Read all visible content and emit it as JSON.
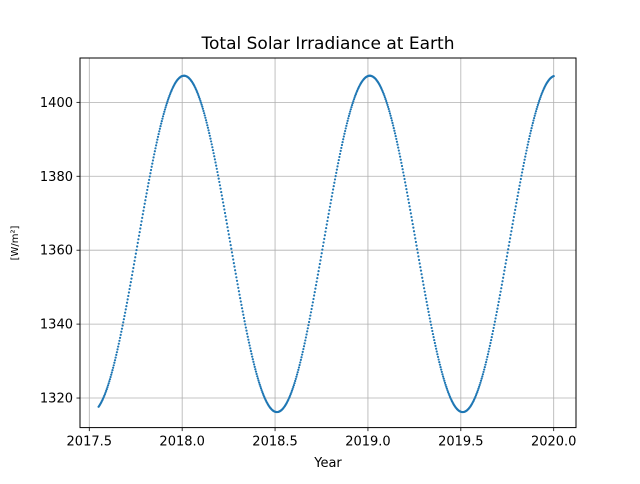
{
  "chart_data": {
    "type": "scatter",
    "title": "Total Solar Irradiance at Earth",
    "xlabel": "Year",
    "ylabel": "[W/m²]",
    "xlim": [
      2017.45,
      2020.12
    ],
    "ylim": [
      1312,
      1412
    ],
    "xticks": [
      2017.5,
      2018.0,
      2018.5,
      2019.0,
      2019.5,
      2020.0
    ],
    "xtick_labels": [
      "2017.5",
      "2018.0",
      "2018.5",
      "2019.0",
      "2019.5",
      "2020.0"
    ],
    "yticks": [
      1320,
      1340,
      1360,
      1380,
      1400
    ],
    "ytick_labels": [
      "1320",
      "1340",
      "1360",
      "1380",
      "1400"
    ],
    "grid": true,
    "x_range": [
      2017.55,
      2020.0
    ],
    "mean": 1361.7,
    "amplitude": 45.5,
    "period_years": 1.0,
    "peak_at": 2018.01,
    "peak_value": 1407.2,
    "trough_value": 1316.2,
    "color": "#1f77b4"
  }
}
